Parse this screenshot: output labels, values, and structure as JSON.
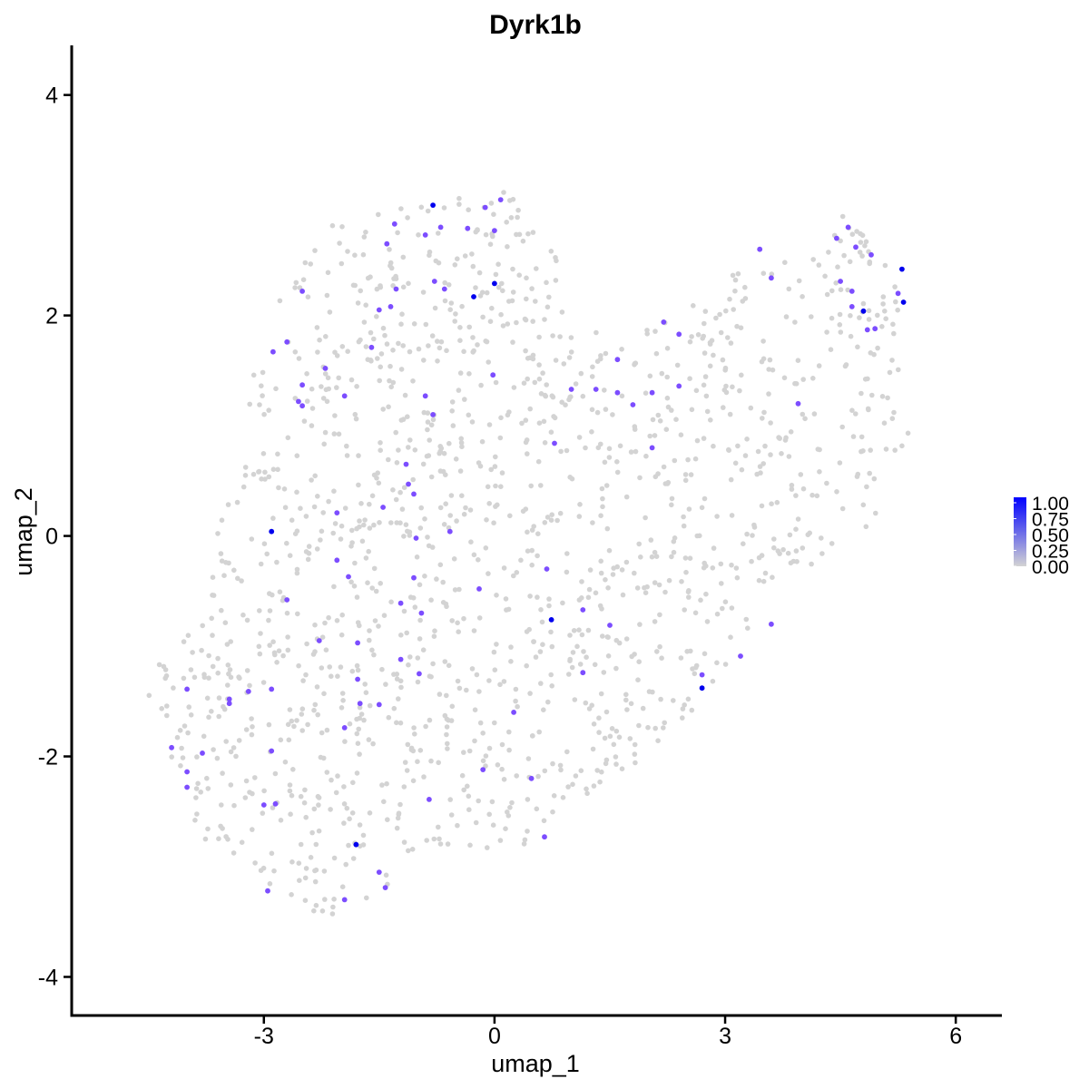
{
  "chart_data": {
    "type": "scatter",
    "title": "Dyrk1b",
    "xlabel": "umap_1",
    "ylabel": "umap_2",
    "xlim": [
      -5.5,
      6.6
    ],
    "ylim": [
      -4.35,
      4.45
    ],
    "xticks": [
      -3,
      0,
      3,
      6
    ],
    "yticks": [
      -4,
      -2,
      0,
      2,
      4
    ],
    "xtick_labels": [
      "-3",
      "0",
      "3",
      "6"
    ],
    "ytick_labels": [
      "-4",
      "-2",
      "0",
      "2",
      "4"
    ],
    "grid": false,
    "legend": {
      "placement": "right",
      "labels": [
        "1.00",
        "0.75",
        "0.50",
        "0.25",
        "0.00"
      ],
      "values": [
        1.0,
        0.75,
        0.5,
        0.25,
        0.0
      ]
    },
    "colors": {
      "low": "#d3d3d3",
      "high": "#0000ff"
    },
    "expressing_points": [
      {
        "x": -0.8,
        "y": 3.0,
        "v": 1.0
      },
      {
        "x": -0.27,
        "y": 2.17,
        "v": 1.0
      },
      {
        "x": 0.0,
        "y": 2.29,
        "v": 1.0
      },
      {
        "x": -2.9,
        "y": 0.04,
        "v": 1.0
      },
      {
        "x": 0.74,
        "y": -0.76,
        "v": 1.0
      },
      {
        "x": 2.7,
        "y": -1.38,
        "v": 1.0
      },
      {
        "x": -1.8,
        "y": -2.8,
        "v": 1.0
      },
      {
        "x": 4.8,
        "y": 2.04,
        "v": 1.0
      },
      {
        "x": 5.3,
        "y": 2.42,
        "v": 1.0
      },
      {
        "x": 5.32,
        "y": 2.12,
        "v": 1.0
      },
      {
        "x": -0.12,
        "y": 2.98,
        "v": 0.6
      },
      {
        "x": -1.3,
        "y": 2.83,
        "v": 0.6
      },
      {
        "x": -0.9,
        "y": 2.73,
        "v": 0.6
      },
      {
        "x": -0.7,
        "y": 2.8,
        "v": 0.6
      },
      {
        "x": -0.35,
        "y": 2.79,
        "v": 0.6
      },
      {
        "x": 0.0,
        "y": 2.77,
        "v": 0.6
      },
      {
        "x": 0.08,
        "y": 3.05,
        "v": 0.6
      },
      {
        "x": -1.4,
        "y": 2.65,
        "v": 0.6
      },
      {
        "x": -0.78,
        "y": 2.31,
        "v": 0.6
      },
      {
        "x": -0.65,
        "y": 2.24,
        "v": 0.6
      },
      {
        "x": -1.28,
        "y": 2.24,
        "v": 0.6
      },
      {
        "x": -1.5,
        "y": 2.05,
        "v": 0.6
      },
      {
        "x": -1.35,
        "y": 2.08,
        "v": 0.6
      },
      {
        "x": -2.5,
        "y": 2.22,
        "v": 0.6
      },
      {
        "x": -2.7,
        "y": 1.76,
        "v": 0.6
      },
      {
        "x": -2.88,
        "y": 1.67,
        "v": 0.6
      },
      {
        "x": -1.6,
        "y": 1.71,
        "v": 0.6
      },
      {
        "x": -2.2,
        "y": 1.52,
        "v": 0.6
      },
      {
        "x": -2.5,
        "y": 1.37,
        "v": 0.6
      },
      {
        "x": -2.55,
        "y": 1.22,
        "v": 0.6
      },
      {
        "x": -2.5,
        "y": 1.18,
        "v": 0.6
      },
      {
        "x": -1.95,
        "y": 1.27,
        "v": 0.6
      },
      {
        "x": -0.9,
        "y": 1.27,
        "v": 0.6
      },
      {
        "x": -0.8,
        "y": 1.1,
        "v": 0.6
      },
      {
        "x": -0.02,
        "y": 1.46,
        "v": 0.6
      },
      {
        "x": 1.0,
        "y": 1.33,
        "v": 0.6
      },
      {
        "x": 1.32,
        "y": 1.33,
        "v": 0.6
      },
      {
        "x": 1.6,
        "y": 1.6,
        "v": 0.6
      },
      {
        "x": 1.6,
        "y": 1.3,
        "v": 0.6
      },
      {
        "x": 1.8,
        "y": 1.19,
        "v": 0.6
      },
      {
        "x": 2.05,
        "y": 1.3,
        "v": 0.6
      },
      {
        "x": 2.4,
        "y": 1.36,
        "v": 0.6
      },
      {
        "x": 2.2,
        "y": 1.94,
        "v": 0.6
      },
      {
        "x": 2.4,
        "y": 1.83,
        "v": 0.6
      },
      {
        "x": 2.05,
        "y": 0.8,
        "v": 0.6
      },
      {
        "x": 0.78,
        "y": 0.84,
        "v": 0.6
      },
      {
        "x": 3.45,
        "y": 2.6,
        "v": 0.6
      },
      {
        "x": 3.6,
        "y": 2.34,
        "v": 0.6
      },
      {
        "x": 3.95,
        "y": 1.2,
        "v": 0.6
      },
      {
        "x": 4.45,
        "y": 2.7,
        "v": 0.6
      },
      {
        "x": 4.6,
        "y": 2.8,
        "v": 0.6
      },
      {
        "x": 4.7,
        "y": 2.62,
        "v": 0.6
      },
      {
        "x": 4.9,
        "y": 2.55,
        "v": 0.6
      },
      {
        "x": 4.5,
        "y": 2.31,
        "v": 0.6
      },
      {
        "x": 4.65,
        "y": 2.22,
        "v": 0.6
      },
      {
        "x": 4.65,
        "y": 2.08,
        "v": 0.6
      },
      {
        "x": 4.85,
        "y": 1.87,
        "v": 0.6
      },
      {
        "x": 4.95,
        "y": 1.88,
        "v": 0.6
      },
      {
        "x": 5.25,
        "y": 2.2,
        "v": 0.6
      },
      {
        "x": -1.15,
        "y": 0.65,
        "v": 0.6
      },
      {
        "x": -1.12,
        "y": 0.47,
        "v": 0.6
      },
      {
        "x": -1.05,
        "y": 0.38,
        "v": 0.6
      },
      {
        "x": -1.45,
        "y": 0.26,
        "v": 0.6
      },
      {
        "x": -2.05,
        "y": 0.21,
        "v": 0.6
      },
      {
        "x": -0.58,
        "y": 0.04,
        "v": 0.6
      },
      {
        "x": -1.02,
        "y": -0.02,
        "v": 0.6
      },
      {
        "x": -2.05,
        "y": -0.22,
        "v": 0.6
      },
      {
        "x": -1.9,
        "y": -0.37,
        "v": 0.6
      },
      {
        "x": -1.05,
        "y": -0.38,
        "v": 0.6
      },
      {
        "x": -1.22,
        "y": -0.61,
        "v": 0.6
      },
      {
        "x": -0.95,
        "y": -0.7,
        "v": 0.6
      },
      {
        "x": -2.7,
        "y": -0.58,
        "v": 0.6
      },
      {
        "x": -0.2,
        "y": -0.48,
        "v": 0.6
      },
      {
        "x": 0.68,
        "y": -0.3,
        "v": 0.6
      },
      {
        "x": 1.15,
        "y": -0.67,
        "v": 0.6
      },
      {
        "x": 1.5,
        "y": -0.81,
        "v": 0.6
      },
      {
        "x": 1.15,
        "y": -1.24,
        "v": 0.6
      },
      {
        "x": -0.98,
        "y": -1.25,
        "v": 0.6
      },
      {
        "x": -1.22,
        "y": -1.12,
        "v": 0.6
      },
      {
        "x": -2.28,
        "y": -0.95,
        "v": 0.6
      },
      {
        "x": -1.78,
        "y": -0.97,
        "v": 0.6
      },
      {
        "x": -1.78,
        "y": -1.3,
        "v": 0.6
      },
      {
        "x": -1.75,
        "y": -1.52,
        "v": 0.6
      },
      {
        "x": -1.5,
        "y": -1.53,
        "v": 0.6
      },
      {
        "x": -2.9,
        "y": -1.39,
        "v": 0.6
      },
      {
        "x": -3.2,
        "y": -1.41,
        "v": 0.6
      },
      {
        "x": -3.45,
        "y": -1.48,
        "v": 0.6
      },
      {
        "x": -3.45,
        "y": -1.52,
        "v": 0.6
      },
      {
        "x": -4.0,
        "y": -1.39,
        "v": 0.6
      },
      {
        "x": -4.2,
        "y": -1.92,
        "v": 0.6
      },
      {
        "x": -3.8,
        "y": -1.97,
        "v": 0.6
      },
      {
        "x": -4.0,
        "y": -2.14,
        "v": 0.6
      },
      {
        "x": -4.0,
        "y": -2.28,
        "v": 0.6
      },
      {
        "x": -2.9,
        "y": -1.95,
        "v": 0.6
      },
      {
        "x": -3.0,
        "y": -2.44,
        "v": 0.6
      },
      {
        "x": -2.85,
        "y": -2.43,
        "v": 0.6
      },
      {
        "x": -1.95,
        "y": -1.74,
        "v": 0.6
      },
      {
        "x": 0.25,
        "y": -1.6,
        "v": 0.6
      },
      {
        "x": -0.15,
        "y": -2.12,
        "v": 0.6
      },
      {
        "x": 0.48,
        "y": -2.2,
        "v": 0.6
      },
      {
        "x": -0.85,
        "y": -2.39,
        "v": 0.6
      },
      {
        "x": 0.65,
        "y": -2.73,
        "v": 0.6
      },
      {
        "x": -1.5,
        "y": -3.05,
        "v": 0.6
      },
      {
        "x": -1.42,
        "y": -3.19,
        "v": 0.6
      },
      {
        "x": -1.95,
        "y": -3.3,
        "v": 0.6
      },
      {
        "x": -2.95,
        "y": -3.22,
        "v": 0.6
      },
      {
        "x": 2.7,
        "y": -1.26,
        "v": 0.6
      },
      {
        "x": 3.2,
        "y": -1.09,
        "v": 0.6
      },
      {
        "x": 3.6,
        "y": -0.8,
        "v": 0.6
      }
    ]
  }
}
